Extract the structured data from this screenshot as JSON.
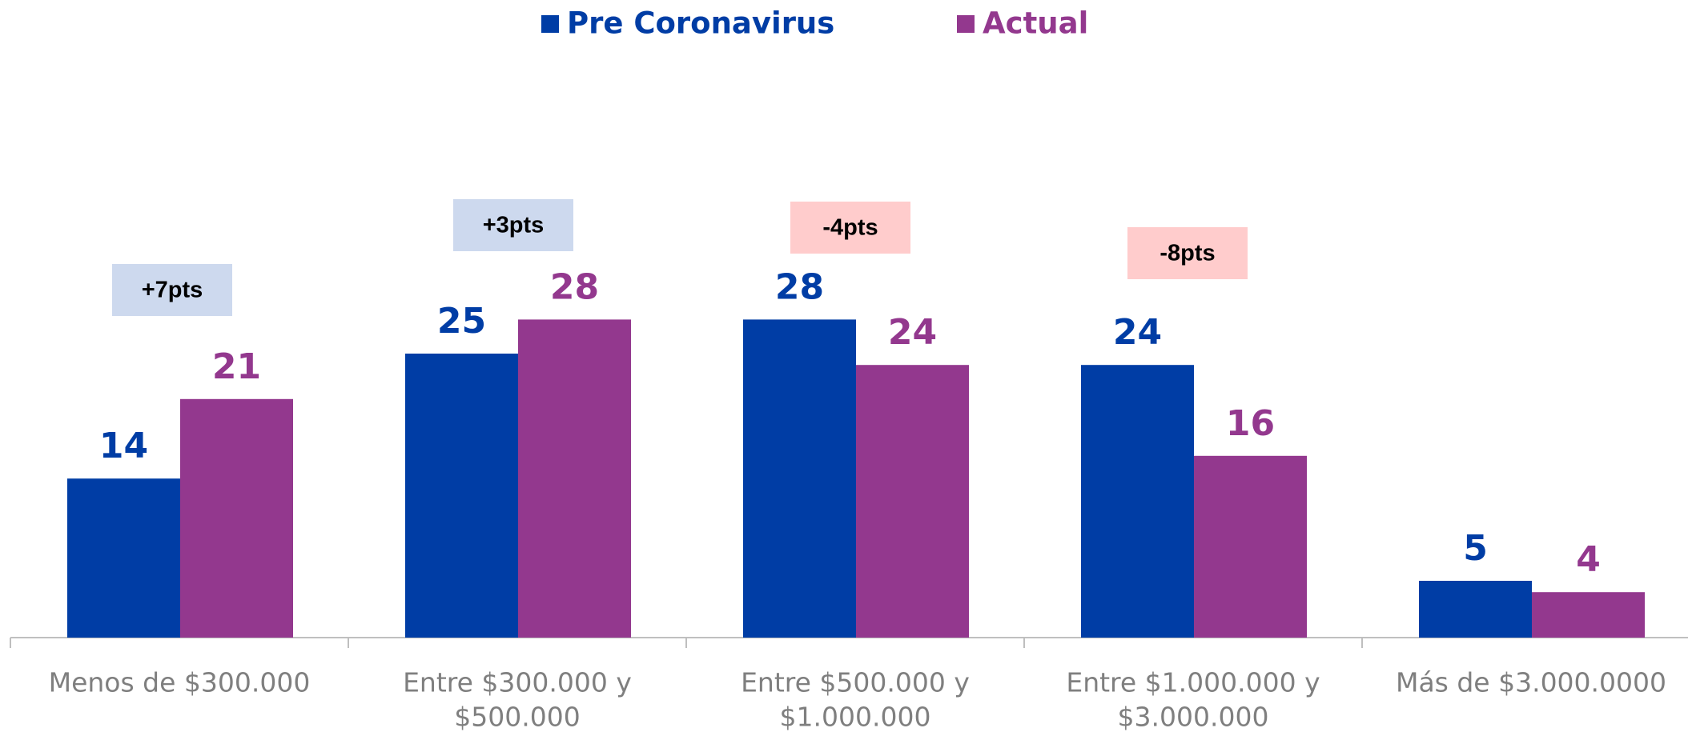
{
  "chart_data": {
    "type": "bar",
    "categories": [
      [
        "Menos de $300.000"
      ],
      [
        "Entre $300.000 y",
        "$500.000"
      ],
      [
        "Entre $500.000 y",
        "$1.000.000"
      ],
      [
        "Entre $1.000.000 y",
        "$3.000.000"
      ],
      [
        "Más de $3.000.0000"
      ]
    ],
    "series": [
      {
        "name": "Pre Coronavirus",
        "color": "#003da5",
        "values": [
          14,
          25,
          28,
          24,
          5
        ]
      },
      {
        "name": "Actual",
        "color": "#93388e",
        "values": [
          21,
          28,
          24,
          16,
          4
        ]
      }
    ],
    "annotations": [
      {
        "text": "+7pts",
        "color": "#cdd9ee"
      },
      {
        "text": "+3pts",
        "color": "#cdd9ee"
      },
      {
        "text": "-4pts",
        "color": "#ffcccc"
      },
      {
        "text": "-8pts",
        "color": "#ffcccc"
      }
    ],
    "axis_color": "#bfbfbf",
    "category_label_color": "#7f7f7f"
  }
}
